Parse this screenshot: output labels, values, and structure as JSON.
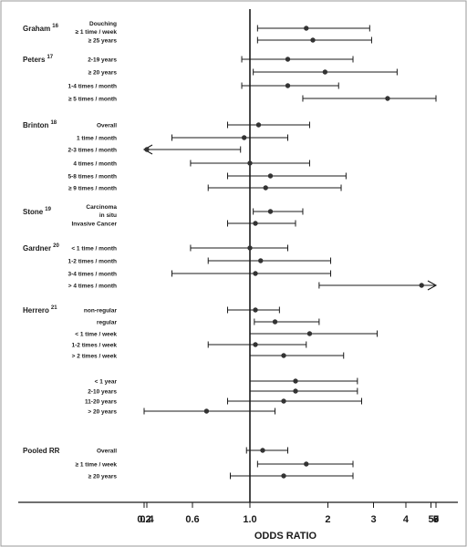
{
  "chart_data": {
    "type": "forest",
    "xlabel": "ODDS RATIO",
    "xscale": "log",
    "xlim": [
      0.16,
      10.5
    ],
    "reference_line": 1.0,
    "ticks": [
      {
        "value": 0.2,
        "label": "0.2"
      },
      {
        "value": 0.3,
        "label": ""
      },
      {
        "value": 0.4,
        "label": "0.4"
      },
      {
        "value": 0.6,
        "label": "0.6"
      },
      {
        "value": 1.0,
        "label": "1.0"
      },
      {
        "value": 2,
        "label": "2"
      },
      {
        "value": 3,
        "label": "3"
      },
      {
        "value": 4,
        "label": "4"
      },
      {
        "value": 5,
        "label": "5"
      },
      {
        "value": 6,
        "label": "6"
      },
      {
        "value": 7,
        "label": "7"
      },
      {
        "value": 8,
        "label": "8"
      },
      {
        "value": 9,
        "label": "9"
      }
    ],
    "groups": [
      {
        "study": "Graham",
        "ref": "16",
        "rows": [
          {
            "label": "Douching",
            "label2": "≥ 1 time / week",
            "or": 1.65,
            "lo": 1.07,
            "hi": 2.9
          },
          {
            "label": "≥ 25 years",
            "or": 1.75,
            "lo": 1.07,
            "hi": 2.95
          }
        ]
      },
      {
        "study": "Peters",
        "ref": "17",
        "rows": [
          {
            "label": "2-19 years",
            "or": 1.4,
            "lo": 0.93,
            "hi": 2.5
          },
          {
            "label": "≥ 20 years",
            "or": 1.95,
            "lo": 1.03,
            "hi": 3.7
          },
          {
            "label": "1-4 times / month",
            "or": 1.4,
            "lo": 0.93,
            "hi": 2.2
          },
          {
            "label": "≥ 5 times / month",
            "or": 3.4,
            "lo": 1.6,
            "hi": 7.1
          }
        ]
      },
      {
        "study": "Brinton",
        "ref": "18",
        "rows": [
          {
            "label": "Overall",
            "or": 1.08,
            "lo": 0.82,
            "hi": 1.7
          },
          {
            "label": "1 time / month",
            "or": 0.95,
            "lo": 0.5,
            "hi": 1.4
          },
          {
            "label": "2-3 times / month",
            "or": 0.4,
            "lo": 0.16,
            "hi": 0.92,
            "arrow_low": true
          },
          {
            "label": "4 times / month",
            "or": 1.0,
            "lo": 0.59,
            "hi": 1.7
          },
          {
            "label": "5-8 times / month",
            "or": 1.2,
            "lo": 0.82,
            "hi": 2.35
          },
          {
            "label": "≥ 9 times / month",
            "or": 1.15,
            "lo": 0.69,
            "hi": 2.25
          }
        ]
      },
      {
        "study": "Stone",
        "ref": "19",
        "rows": [
          {
            "label": "Carcinoma",
            "label2": "in situ",
            "or": 1.2,
            "lo": 1.03,
            "hi": 1.6
          },
          {
            "label": "Invasive Cancer",
            "or": 1.05,
            "lo": 0.82,
            "hi": 1.5
          }
        ]
      },
      {
        "study": "Gardner",
        "ref": "20",
        "rows": [
          {
            "label": "< 1 time / month",
            "or": 1.0,
            "lo": 0.59,
            "hi": 1.4
          },
          {
            "label": "1-2 times / month",
            "or": 1.1,
            "lo": 0.69,
            "hi": 2.05
          },
          {
            "label": "3-4 times / month",
            "or": 1.05,
            "lo": 0.5,
            "hi": 2.05
          },
          {
            "label": "> 4 times / month",
            "or": 4.6,
            "lo": 1.85,
            "hi": 10.2,
            "arrow_high": true
          }
        ]
      },
      {
        "study": "Herrero",
        "ref": "21",
        "rows": [
          {
            "label": "non-regular",
            "or": 1.05,
            "lo": 0.82,
            "hi": 1.3
          },
          {
            "label": "regular",
            "or": 1.25,
            "lo": 1.04,
            "hi": 1.85
          },
          {
            "label": "< 1 time / week",
            "or": 1.7,
            "lo": 1.0,
            "hi": 3.1
          },
          {
            "label": "1-2 times / week",
            "or": 1.05,
            "lo": 0.69,
            "hi": 1.65
          },
          {
            "label": "> 2 times / week",
            "or": 1.35,
            "lo": 1.0,
            "hi": 2.3
          },
          {
            "label": "< 1 year",
            "or": 1.5,
            "lo": 1.0,
            "hi": 2.6
          },
          {
            "label": "2-10 years",
            "or": 1.5,
            "lo": 1.0,
            "hi": 2.6
          },
          {
            "label": "11-20 years",
            "or": 1.35,
            "lo": 0.82,
            "hi": 2.7
          },
          {
            "label": "> 20 years",
            "or": 0.68,
            "lo": 0.3,
            "hi": 1.25
          }
        ]
      },
      {
        "study": "Pooled RR",
        "ref": "",
        "rows": [
          {
            "label": "Overall",
            "or": 1.12,
            "lo": 0.97,
            "hi": 1.4
          },
          {
            "label": "≥ 1 time / week",
            "or": 1.65,
            "lo": 1.07,
            "hi": 2.5
          },
          {
            "label": "≥ 20 years",
            "or": 1.35,
            "lo": 0.84,
            "hi": 2.5
          }
        ]
      }
    ]
  }
}
